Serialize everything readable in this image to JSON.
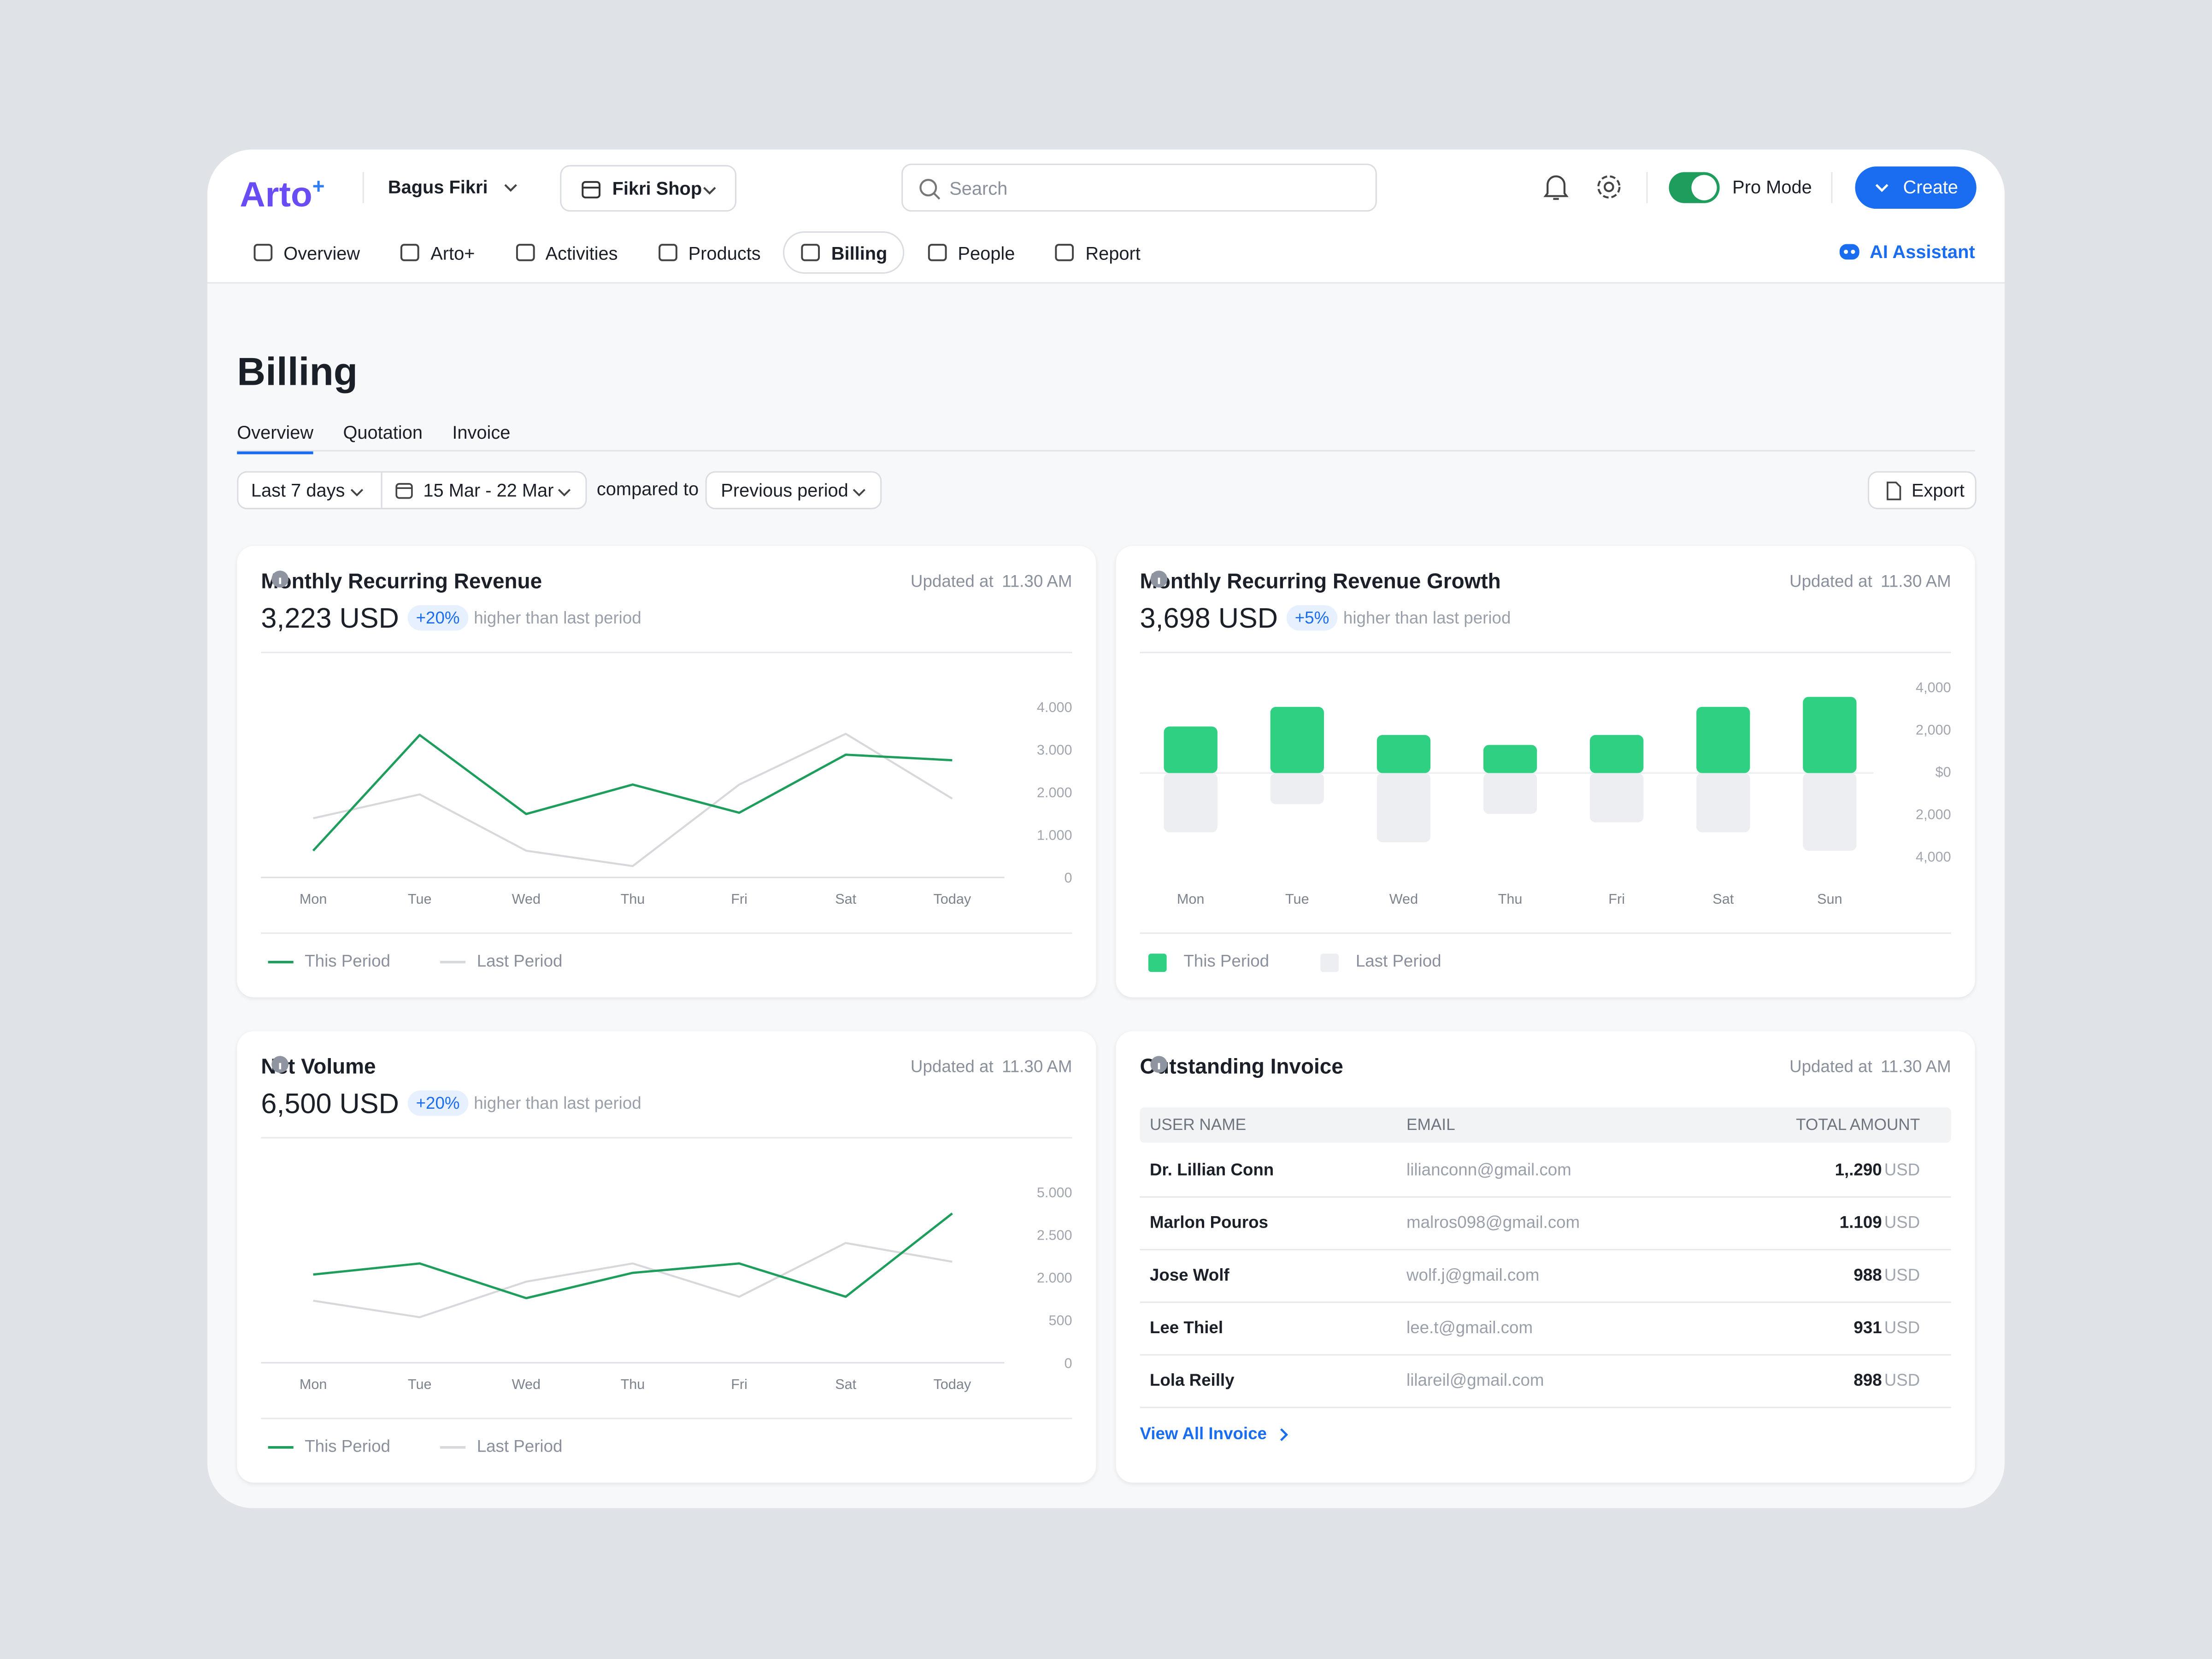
{
  "header": {
    "logo": "Arto",
    "logo_mark": "+",
    "user": "Bagus Fikri",
    "shop": "Fikri Shop",
    "search": "Search",
    "pro_mode": "Pro Mode",
    "create": "Create"
  },
  "nav": {
    "items": [
      "Overview",
      "Arto+",
      "Activities",
      "Products",
      "Billing",
      "People",
      "Report"
    ],
    "active": 4,
    "ai_assistant": "AI Assistant"
  },
  "page": {
    "title": "Billing",
    "tabs": [
      "Overview",
      "Quotation",
      "Invoice"
    ],
    "active_tab": 0,
    "filters": {
      "range": "Last 7 days",
      "dates": "15 Mar - 22 Mar",
      "compared": "compared to",
      "comparison": "Previous period",
      "export": "Export"
    }
  },
  "cards": [
    {
      "title": "Monthly Recurring Revenue",
      "updated_label": "Updated at",
      "updated_time": "11.30 AM",
      "value": "3,223 USD",
      "badge": "+20%",
      "note": "higher than last period",
      "chart_data": {
        "type": "line",
        "categories": [
          "Mon",
          "Tue",
          "Wed",
          "Thu",
          "Fri",
          "Sat",
          "Today"
        ],
        "series": [
          {
            "name": "This Period",
            "color": "#1f9d5c",
            "values": [
              660,
              3370,
              1520,
              2210,
              1550,
              2910,
              2780
            ]
          },
          {
            "name": "Last Period",
            "color": "#d6d8dc",
            "values": [
              1420,
              1980,
              660,
              300,
              2210,
              3400,
              1880
            ]
          }
        ],
        "ylim": [
          0,
          4000
        ],
        "yticks": [
          {
            "value": 4000,
            "label": "4.000"
          },
          {
            "value": 3000,
            "label": "3.000"
          },
          {
            "value": 2000,
            "label": "2.000"
          },
          {
            "value": 1000,
            "label": "1.000"
          },
          0
        ]
      }
    },
    {
      "title": "Monthly Recurring Revenue Growth",
      "updated_label": "Updated at",
      "updated_time": "11.30 AM",
      "value": "3,698 USD",
      "badge": "+5%",
      "note": "higher than last period",
      "chart_data": {
        "type": "bar",
        "categories": [
          "Mon",
          "Tue",
          "Wed",
          "Thu",
          "Fri",
          "Sat",
          "Sun"
        ],
        "series": [
          {
            "name": "This Period",
            "color": "#2fd081",
            "values": [
              2200,
              3130,
              1800,
              1330,
              1800,
              3130,
              3600
            ]
          },
          {
            "name": "Last Period",
            "color": "#eceef2",
            "values": [
              -2800,
              -1470,
              -3270,
              -1930,
              -2330,
              -2800,
              -3670
            ]
          }
        ],
        "ylim": [
          -4000,
          4000
        ],
        "yticks": [
          {
            "value": 4000,
            "label": "4,000"
          },
          {
            "value": 2000,
            "label": "2,000"
          },
          {
            "value": 0,
            "label": "$0"
          },
          {
            "value": -2000,
            "label": "2,000"
          },
          {
            "value": -4000,
            "label": "4,000"
          }
        ]
      }
    },
    {
      "title": "Net Volume",
      "updated_label": "Updated at",
      "updated_time": "11.30 AM",
      "value": "6,500 USD",
      "badge": "+20%",
      "note": "higher than last period",
      "chart_data": {
        "type": "line",
        "categories": [
          "Mon",
          "Tue",
          "Wed",
          "Thu",
          "Fri",
          "Sat",
          "Today"
        ],
        "series": [
          {
            "name": "This Period",
            "color": "#1f9d5c",
            "values": [
              2050,
              2180,
              1320,
              2070,
              2180,
              1370,
              3830
            ]
          },
          {
            "name": "Last Period",
            "color": "#d6d8dc",
            "values": [
              1230,
              650,
              1900,
              2180,
              1370,
              2420,
              2200
            ]
          }
        ],
        "ylim": [
          0,
          5000
        ],
        "yticks": [
          {
            "value": 5000,
            "label": "5.000"
          },
          {
            "value": 2500,
            "label": "2.500"
          },
          {
            "value": 2000,
            "label": "2.000"
          },
          500,
          0
        ]
      }
    },
    {
      "title": "Outstanding Invoice",
      "updated_label": "Updated at",
      "updated_time": "11.30 AM",
      "table": {
        "columns": [
          "USER NAME",
          "EMAIL",
          "TOTAL AMOUNT"
        ],
        "rows": [
          [
            "Dr. Lillian Conn",
            "lilianconn@gmail.com",
            "1,.290",
            "USD"
          ],
          [
            "Marlon Pouros",
            "malros098@gmail.com",
            "1.109",
            "USD"
          ],
          [
            "Jose Wolf",
            "wolf.j@gmail.com",
            "988",
            "USD"
          ],
          [
            "Lee Thiel",
            "lee.t@gmail.com",
            "931",
            "USD"
          ],
          [
            "Lola Reilly",
            "lilareil@gmail.com",
            "898",
            "USD"
          ]
        ]
      },
      "link": "View All Invoice"
    }
  ]
}
